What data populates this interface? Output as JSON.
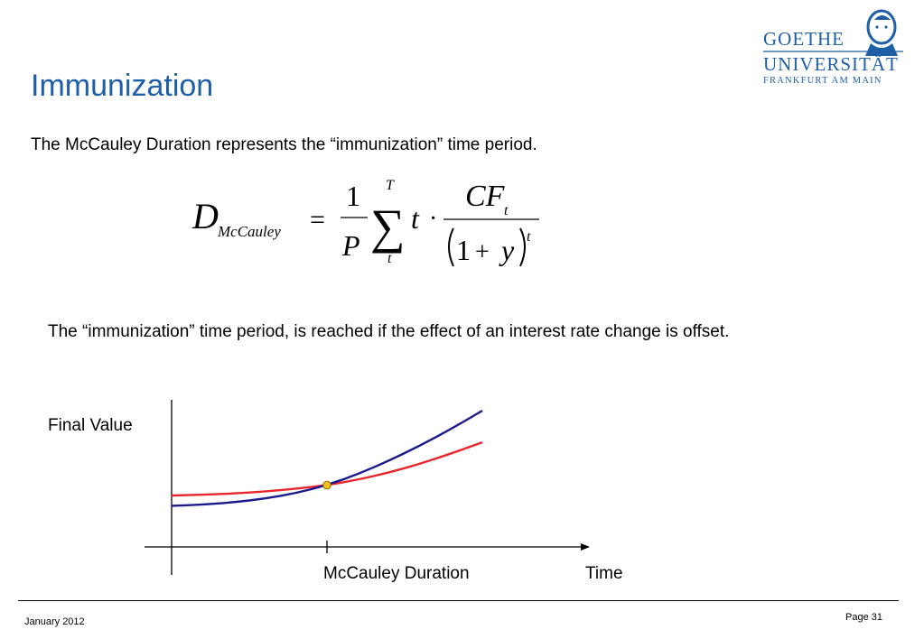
{
  "slide": {
    "title": "Immunization",
    "intro": "The McCauley Duration represents the “immunization” time period.",
    "paragraph": "The “immunization” time period, is reached if the effect of an interest rate change is offset."
  },
  "logo": {
    "line1": "GOETHE",
    "line2": "UNIVERSITÄT",
    "line3": "FRANKFURT AM MAIN",
    "color": "#1f5fa8"
  },
  "formula": {
    "lhs_symbol": "D",
    "lhs_subscript": "McCauley",
    "equals": "=",
    "frac_num": "1",
    "frac_den": "P",
    "sum_upper": "T",
    "sum_lower": "t",
    "sum_symbol": "∑",
    "term": "t",
    "dot": "·",
    "cf": "CF",
    "cf_sub": "t",
    "den_one": "1",
    "den_plus": "+",
    "den_y": "y",
    "den_exp": "t"
  },
  "chart_data": {
    "type": "line",
    "ylabel": "Final Value",
    "xlabel": "Time",
    "marker_label": "McCauley Duration",
    "marker_x": 0.5,
    "x": [
      0,
      0.1,
      0.2,
      0.3,
      0.4,
      0.5,
      0.6,
      0.7,
      0.8,
      0.9,
      1.0
    ],
    "series": [
      {
        "color": "#e8262b",
        "values": [
          0.33,
          0.34,
          0.355,
          0.38,
          0.415,
          0.46,
          0.53,
          0.62,
          0.73,
          0.86,
          1.0
        ]
      },
      {
        "color": "#1a1a8c",
        "values": [
          0.2,
          0.215,
          0.245,
          0.29,
          0.36,
          0.46,
          0.6,
          0.77,
          0.96,
          1.17,
          1.4
        ]
      }
    ],
    "intersection_color": "#f6c21c",
    "grid": false
  },
  "footer": {
    "date": "January 2012",
    "page": "Page 31"
  }
}
